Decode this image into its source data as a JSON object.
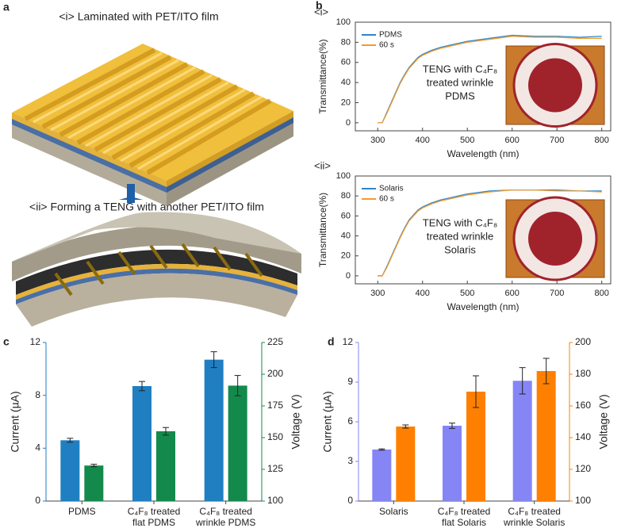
{
  "figure": {
    "panel_labels": [
      "a",
      "b",
      "c",
      "d"
    ],
    "captions": [
      "<i> Laminated with PET/ITO film",
      "<ii> Forming a TENG with another PET/ITO film"
    ]
  },
  "chart_data": [
    {
      "type": "line",
      "title": "<i>",
      "x_label": "Wavelength (nm)",
      "y_label": "Transmittance(%)",
      "annotation": [
        "TENG with C₄F₈",
        "treated wrinkle",
        "PDMS"
      ],
      "x": [
        300,
        310,
        320,
        330,
        340,
        350,
        360,
        370,
        380,
        390,
        400,
        420,
        440,
        460,
        480,
        500,
        550,
        600,
        650,
        700,
        750,
        800
      ],
      "series": [
        {
          "name": "PDMS",
          "color": "#2f86c8",
          "values": [
            0,
            0,
            10,
            20,
            30,
            40,
            48,
            55,
            60,
            65,
            68,
            72,
            75,
            77,
            79,
            81,
            84,
            87,
            86,
            86,
            85,
            86
          ]
        },
        {
          "name": "60 s",
          "color": "#f39a2d",
          "values": [
            0,
            0,
            9,
            19,
            29,
            39,
            47,
            54,
            59,
            64,
            67,
            71,
            74,
            76,
            78,
            80,
            83,
            86,
            85,
            85,
            84,
            84
          ]
        }
      ],
      "xlim": [
        250,
        820
      ],
      "xticks": [
        300,
        400,
        500,
        600,
        700,
        800
      ],
      "ylim": [
        -8,
        100
      ],
      "yticks": [
        0,
        20,
        40,
        60,
        80,
        100
      ],
      "legend": "upper left"
    },
    {
      "type": "line",
      "title": "<ii>",
      "x_label": "Wavelength (nm)",
      "y_label": "Transmittance(%)",
      "annotation": [
        "TENG with C₄F₈",
        "treated wrinkle",
        "Solaris"
      ],
      "x": [
        300,
        310,
        320,
        330,
        340,
        350,
        360,
        370,
        380,
        390,
        400,
        420,
        440,
        460,
        480,
        500,
        550,
        600,
        650,
        700,
        750,
        800
      ],
      "series": [
        {
          "name": "Solaris",
          "color": "#2f86c8",
          "values": [
            0,
            0,
            9,
            19,
            29,
            39,
            48,
            56,
            61,
            66,
            69,
            73,
            76,
            78,
            80,
            82,
            85,
            86,
            86,
            86,
            85,
            85
          ]
        },
        {
          "name": "60 s",
          "color": "#f39a2d",
          "values": [
            0,
            0,
            8,
            18,
            28,
            38,
            47,
            55,
            60,
            65,
            68,
            72,
            75,
            77,
            79,
            81,
            84,
            86,
            86,
            85,
            85,
            84
          ]
        }
      ],
      "xlim": [
        250,
        820
      ],
      "xticks": [
        300,
        400,
        500,
        600,
        700,
        800
      ],
      "ylim": [
        -8,
        100
      ],
      "yticks": [
        0,
        20,
        40,
        60,
        80,
        100
      ],
      "legend": "upper left"
    },
    {
      "type": "bar",
      "categories": [
        [
          "PDMS"
        ],
        [
          "C₄F₈ treated",
          "flat PDMS"
        ],
        [
          "C₄F₈ treated",
          "wrinkle PDMS"
        ]
      ],
      "y_label": "Current (µA)",
      "y2_label": "Voltage (V)",
      "series": [
        {
          "color": "#1f7fc1",
          "values": [
            4.6,
            8.7,
            10.7
          ],
          "errors": [
            0.15,
            0.35,
            0.6
          ]
        },
        {
          "color": "#138a4b",
          "axis": "y2",
          "values": [
            128,
            155,
            191
          ],
          "errors": [
            1,
            3,
            8
          ]
        }
      ],
      "ylim": [
        0,
        12
      ],
      "yticks": [
        0,
        4,
        8,
        12
      ],
      "y2lim": [
        100,
        225
      ],
      "y2ticks": [
        100,
        125,
        150,
        175,
        200,
        225
      ]
    },
    {
      "type": "bar",
      "categories": [
        [
          "Solaris"
        ],
        [
          "C₄F₈ treated",
          "flat Solaris"
        ],
        [
          "C₄F₈ treated",
          "wrinkle Solaris"
        ]
      ],
      "y_label": "Current (µA)",
      "y2_label": "Voltage (V)",
      "series": [
        {
          "color": "#8585f5",
          "values": [
            3.9,
            5.7,
            9.1
          ],
          "errors": [
            0.05,
            0.2,
            1.0
          ]
        },
        {
          "color": "#ff8000",
          "axis": "y2",
          "values": [
            147,
            169,
            182
          ],
          "errors": [
            1,
            10,
            8
          ]
        }
      ],
      "ylim": [
        0,
        12
      ],
      "yticks": [
        0,
        3,
        6,
        9,
        12
      ],
      "y2lim": [
        100,
        200
      ],
      "y2ticks": [
        100,
        120,
        140,
        160,
        180,
        200
      ]
    }
  ]
}
